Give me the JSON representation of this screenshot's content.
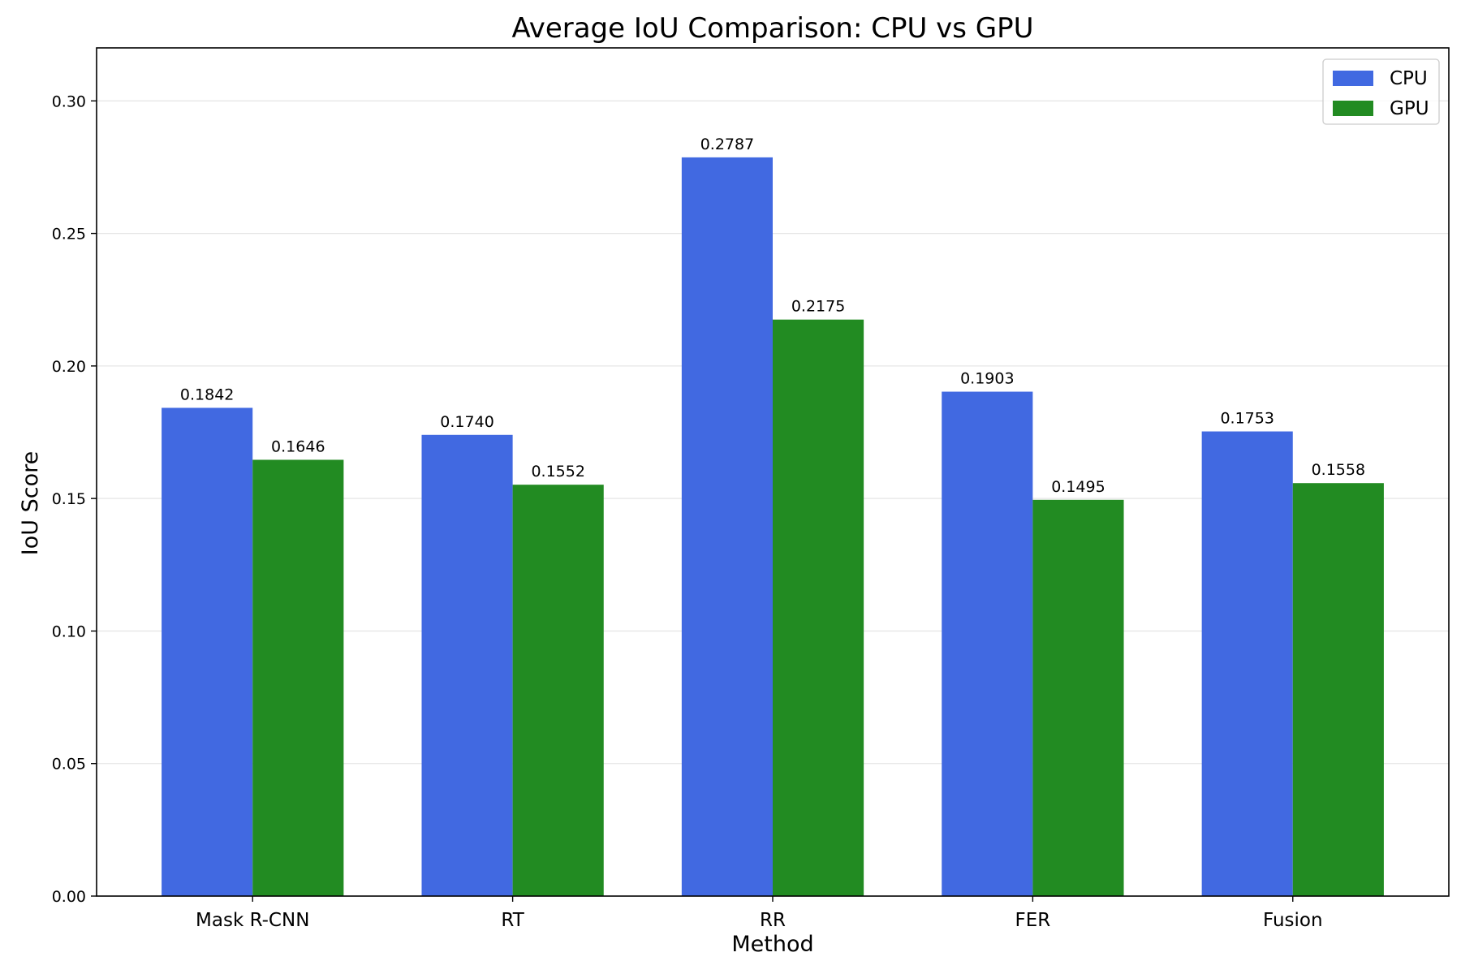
{
  "chart_data": {
    "type": "bar",
    "title": "Average IoU Comparison: CPU vs GPU",
    "xlabel": "Method",
    "ylabel": "IoU Score",
    "categories": [
      "Mask R-CNN",
      "RT",
      "RR",
      "FER",
      "Fusion"
    ],
    "series": [
      {
        "name": "CPU",
        "color": "#4169e1",
        "values": [
          0.1842,
          0.174,
          0.2787,
          0.1903,
          0.1753
        ]
      },
      {
        "name": "GPU",
        "color": "#228b22",
        "values": [
          0.1646,
          0.1552,
          0.2175,
          0.1495,
          0.1558
        ]
      }
    ],
    "data_labels": [
      [
        "0.1842",
        "0.1740",
        "0.2787",
        "0.1903",
        "0.1753"
      ],
      [
        "0.1646",
        "0.1552",
        "0.2175",
        "0.1495",
        "0.1558"
      ]
    ],
    "ylim": [
      0,
      0.32
    ],
    "yticks": [
      0.0,
      0.05,
      0.1,
      0.15,
      0.2,
      0.25,
      0.3
    ],
    "ytick_labels": [
      "0.00",
      "0.05",
      "0.10",
      "0.15",
      "0.20",
      "0.25",
      "0.30"
    ],
    "grid": "y",
    "legend_position": "top-right"
  }
}
